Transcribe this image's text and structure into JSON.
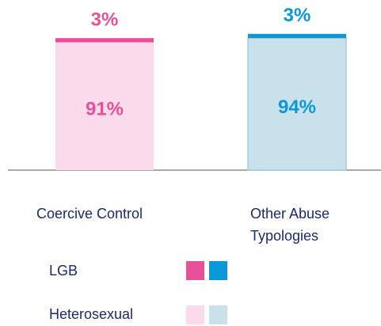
{
  "chart_data": {
    "type": "stacked_bar",
    "categories": [
      "Coercive Control",
      "Other Abuse Typologies"
    ],
    "series": [
      {
        "name": "LGB",
        "colors": [
          "#e8519a",
          "#0a98d8"
        ],
        "values": [
          3,
          3
        ],
        "value_labels": [
          "3%",
          "3%"
        ]
      },
      {
        "name": "Heterosexual",
        "colors": [
          "#fbdbeb",
          "#c8e1eb"
        ],
        "values": [
          91,
          94
        ],
        "value_labels": [
          "91%",
          "94%"
        ]
      }
    ],
    "ylim": [
      0,
      120
    ]
  }
}
